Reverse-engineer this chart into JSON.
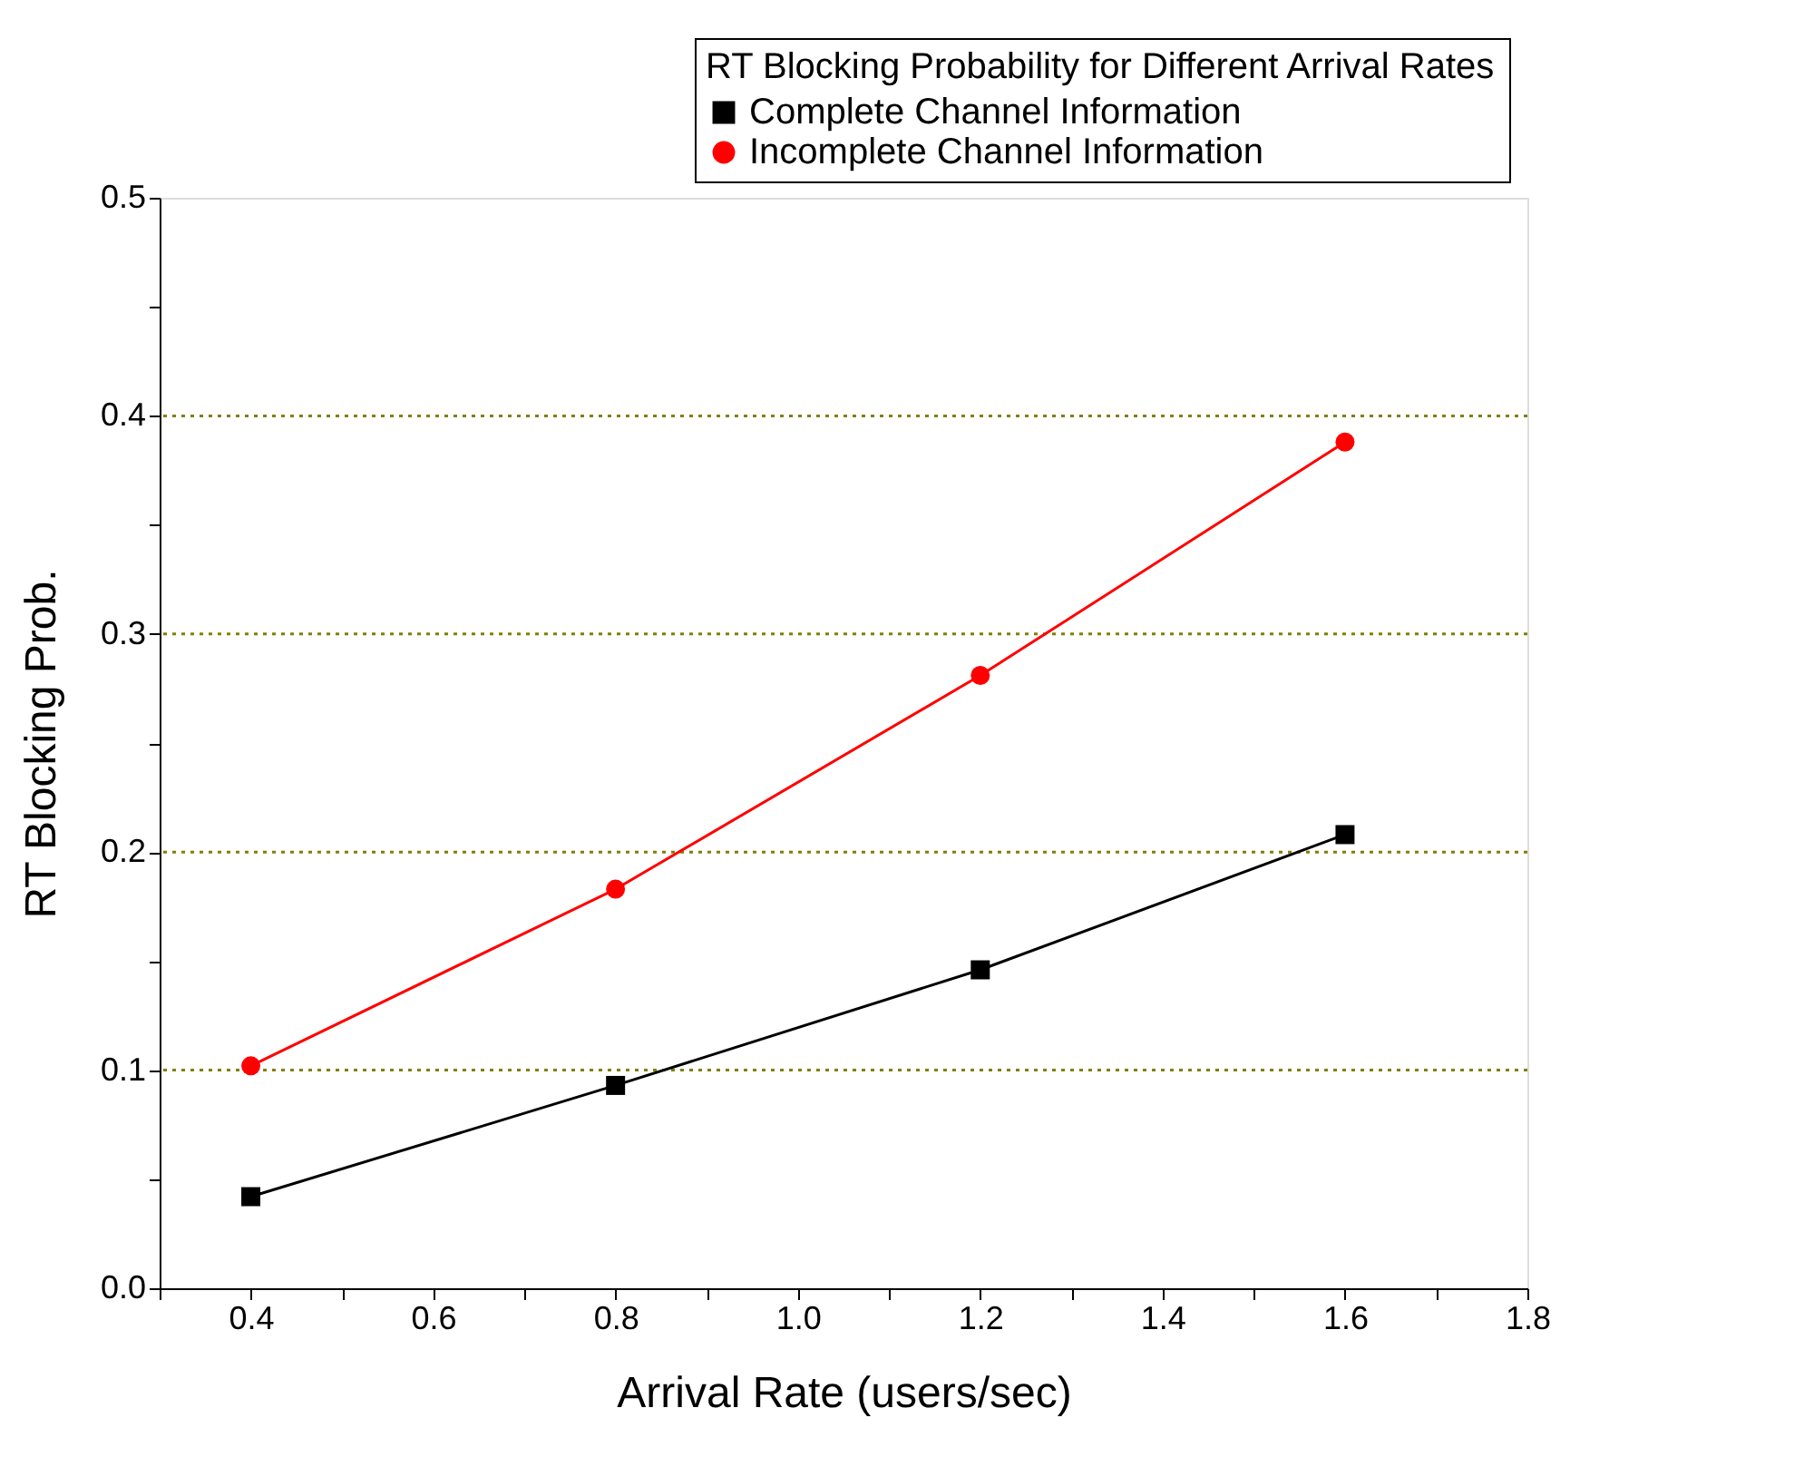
{
  "chart_data": {
    "type": "line",
    "legend_title": "RT Blocking Probability for Different Arrival Rates",
    "xlabel": "Arrival Rate (users/sec)",
    "ylabel": "RT  Blocking  Prob.",
    "x": [
      0.4,
      0.8,
      1.2,
      1.6
    ],
    "series": [
      {
        "name": "Complete Channel Information",
        "color": "#000000",
        "marker": "square",
        "values": [
          0.042,
          0.093,
          0.146,
          0.208
        ]
      },
      {
        "name": "Incomplete Channel Information",
        "color": "#ff0000",
        "marker": "circle",
        "values": [
          0.102,
          0.183,
          0.281,
          0.388
        ]
      }
    ],
    "xlim": [
      0.3,
      1.8
    ],
    "xticks": [
      {
        "value": 0.3,
        "label": null
      },
      0.4,
      {
        "value": 0.5,
        "label": null
      },
      0.6,
      {
        "value": 0.7,
        "label": null
      },
      0.8,
      {
        "value": 0.9,
        "label": null
      },
      {
        "value": 1.0,
        "label": "1.0"
      },
      {
        "value": 1.1,
        "label": null
      },
      1.2,
      {
        "value": 1.3,
        "label": null
      },
      1.4,
      {
        "value": 1.5,
        "label": null
      },
      1.6,
      {
        "value": 1.7,
        "label": null
      },
      1.8
    ],
    "ylim": [
      0,
      0.5
    ],
    "yticks": [
      {
        "value": 0,
        "label": "0.0"
      },
      {
        "value": 0.05,
        "label": null
      },
      0.1,
      {
        "value": 0.15,
        "label": null
      },
      0.2,
      {
        "value": 0.25,
        "label": null
      },
      0.3,
      {
        "value": 0.35,
        "label": null
      },
      0.4,
      {
        "value": 0.45,
        "label": null
      },
      0.5
    ],
    "grid": "y",
    "legend": "top right",
    "line_style": "solid"
  }
}
